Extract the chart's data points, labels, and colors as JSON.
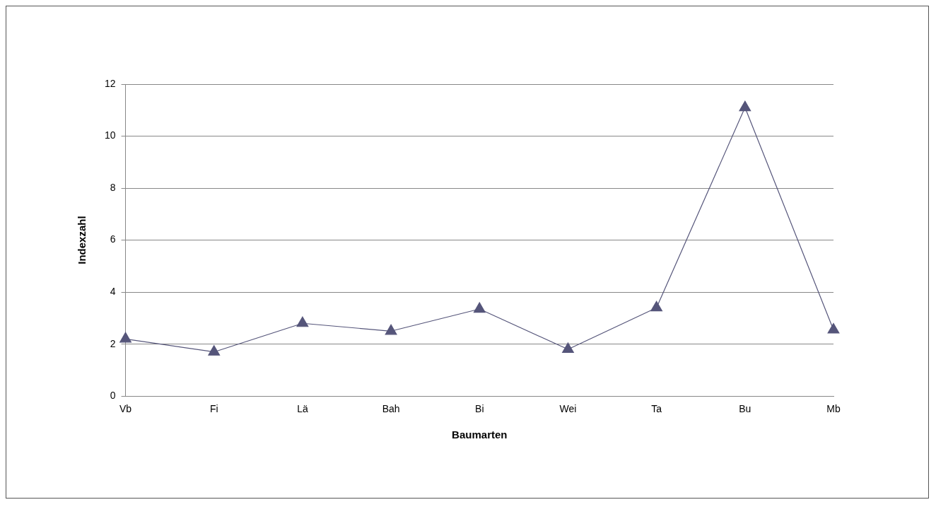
{
  "chart_data": {
    "type": "line",
    "xlabel": "Baumarten",
    "ylabel": "Indexzahl",
    "categories": [
      "Vb",
      "Fi",
      "Lä",
      "Bah",
      "Bi",
      "Wei",
      "Ta",
      "Bu",
      "Mb"
    ],
    "series": [
      {
        "color": "#55557a",
        "values": [
          2.2,
          1.7,
          2.8,
          2.5,
          3.35,
          1.8,
          3.4,
          11.1,
          2.55
        ]
      }
    ],
    "ylim": [
      0,
      12
    ],
    "yticks": [
      0,
      2,
      4,
      6,
      8,
      10,
      12
    ],
    "grid": "y",
    "legend": false,
    "marker": "triangle",
    "line_style": "solid"
  }
}
